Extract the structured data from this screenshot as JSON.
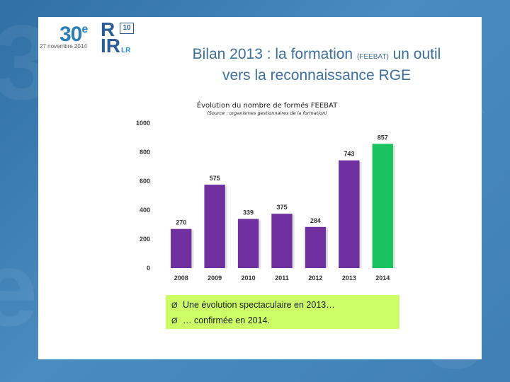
{
  "header": {
    "logo_number": "30",
    "logo_sup": "e",
    "logo_date": "27 novembre 2014",
    "logo_r1": "R",
    "logo_r2": "R",
    "logo_r2_prefix": "I",
    "logo_box": "10",
    "logo_lr": "LR"
  },
  "title": {
    "part1": "Bilan 2013 : la formation ",
    "small": "(FEEBAT)",
    "part2": " un outil",
    "line2": "vers la reconnaissance RGE"
  },
  "chart_data": {
    "type": "bar",
    "title": "Évolution du nombre de formés FEEBAT",
    "subtitle": "(Source : organismes gestionnaires de la formation)",
    "categories": [
      "2008",
      "2009",
      "2010",
      "2011",
      "2012",
      "2013",
      "2014"
    ],
    "values": [
      270,
      575,
      339,
      375,
      284,
      743,
      857
    ],
    "ylim": [
      0,
      1000
    ],
    "yticks": [
      0,
      200,
      400,
      600,
      800,
      1000
    ],
    "grid": false,
    "colors": {
      "default": "#7030a0",
      "highlight": "#19c35e",
      "highlight_index": 6,
      "axis": "#333333"
    }
  },
  "callout": {
    "items": [
      "Une évolution spectaculaire en 2013…",
      "… confirmée en 2014."
    ],
    "bullet": "Ø",
    "bg": "#ccff66"
  }
}
